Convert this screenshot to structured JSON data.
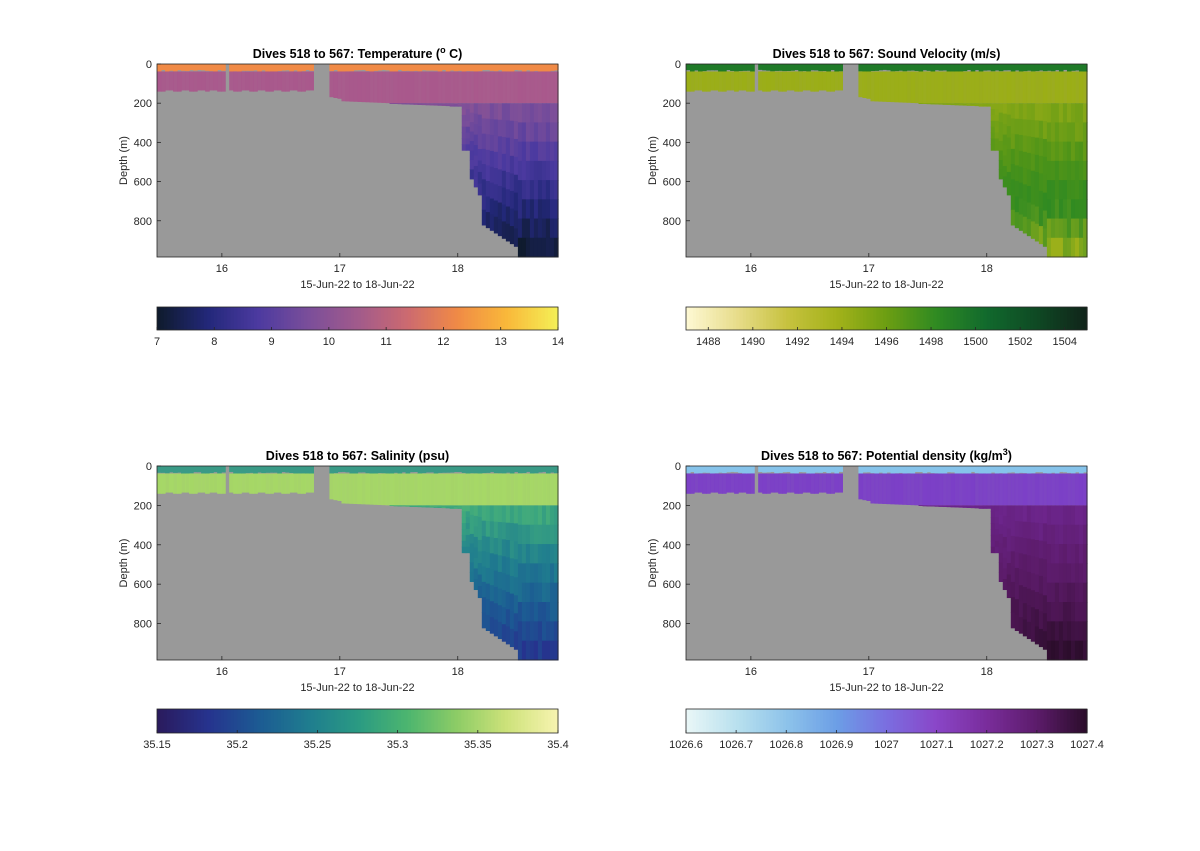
{
  "chart_data": [
    {
      "type": "heatmap",
      "title": "Dives 518 to 567: Temperature (",
      "title_sup": "o",
      "title_end": " C)",
      "xlabel": "15-Jun-22 to 18-Jun-22",
      "ylabel": "Depth (m)",
      "x_ticks": [
        "16",
        "17",
        "18"
      ],
      "y_ticks": [
        "0",
        "200",
        "400",
        "600",
        "800"
      ],
      "xlim": [
        15.45,
        18.85
      ],
      "ylim": [
        0,
        985
      ],
      "colorbar": {
        "ticks": [
          "7",
          "8",
          "9",
          "10",
          "11",
          "12",
          "13",
          "14"
        ],
        "tick_values": [
          7,
          8,
          9,
          10,
          11,
          12,
          13,
          14
        ],
        "range": [
          7,
          14
        ],
        "colormap": [
          "#0f1b2e",
          "#23287a",
          "#4c3aa0",
          "#7a4e9a",
          "#a15a8c",
          "#cc6a70",
          "#f08a46",
          "#f9b83a",
          "#f4ee55"
        ]
      },
      "profile": {
        "surface_color": "#f08a46",
        "mid_color": "#a9588c",
        "deep_colors": [
          "#a15a8c",
          "#7a4e9a",
          "#4c3aa0",
          "#23287a",
          "#0f1b2e"
        ]
      }
    },
    {
      "type": "heatmap",
      "title": "Dives 518 to 567: Sound Velocity (m/s)",
      "xlabel": "15-Jun-22 to 18-Jun-22",
      "ylabel": "Depth (m)",
      "x_ticks": [
        "16",
        "17",
        "18"
      ],
      "y_ticks": [
        "0",
        "200",
        "400",
        "600",
        "800"
      ],
      "xlim": [
        15.45,
        18.85
      ],
      "ylim": [
        0,
        985
      ],
      "colorbar": {
        "ticks": [
          "1488",
          "1490",
          "1492",
          "1494",
          "1496",
          "1498",
          "1500",
          "1502",
          "1504"
        ],
        "tick_values": [
          1488,
          1490,
          1492,
          1494,
          1496,
          1498,
          1500,
          1502,
          1504
        ],
        "range": [
          1487,
          1505
        ],
        "colormap": [
          "#fdf8d2",
          "#e7dc8a",
          "#c7c23f",
          "#a3b21a",
          "#6c9e12",
          "#2f8a22",
          "#116a2d",
          "#0f4a24",
          "#10251a"
        ]
      },
      "profile": {
        "surface_color": "#1f7a28",
        "mid_color": "#9bae16",
        "deep_colors": [
          "#a3b21a",
          "#7ea416",
          "#4f9418",
          "#2f8a22",
          "#9bb01a"
        ]
      }
    },
    {
      "type": "heatmap",
      "title": "Dives 518 to 567: Salinity (psu)",
      "xlabel": "15-Jun-22 to 18-Jun-22",
      "ylabel": "Depth (m)",
      "x_ticks": [
        "16",
        "17",
        "18"
      ],
      "y_ticks": [
        "0",
        "200",
        "400",
        "600",
        "800"
      ],
      "xlim": [
        15.45,
        18.85
      ],
      "ylim": [
        0,
        985
      ],
      "colorbar": {
        "ticks": [
          "35.15",
          "35.2",
          "35.25",
          "35.3",
          "35.35",
          "35.4"
        ],
        "tick_values": [
          35.15,
          35.2,
          35.25,
          35.3,
          35.35,
          35.4
        ],
        "range": [
          35.15,
          35.4
        ],
        "colormap": [
          "#2a1b5e",
          "#26338e",
          "#1c5a93",
          "#1f7c8f",
          "#2a9a83",
          "#4cb56f",
          "#8dcc66",
          "#cde27a",
          "#f6f3ae"
        ]
      },
      "profile": {
        "surface_color": "#3a9a86",
        "mid_color": "#a6d866",
        "deep_colors": [
          "#6cc66a",
          "#3aa57f",
          "#1f7c8f",
          "#1c5a93",
          "#26338e"
        ]
      }
    },
    {
      "type": "heatmap",
      "title": "Dives 518 to 567: Potential density (kg/m",
      "title_sup": "3",
      "title_end": ")",
      "xlabel": "15-Jun-22 to 18-Jun-22",
      "ylabel": "Depth (m)",
      "x_ticks": [
        "16",
        "17",
        "18"
      ],
      "y_ticks": [
        "0",
        "200",
        "400",
        "600",
        "800"
      ],
      "xlim": [
        15.45,
        18.85
      ],
      "ylim": [
        0,
        985
      ],
      "colorbar": {
        "ticks": [
          "1026.6",
          "1026.7",
          "1026.8",
          "1026.9",
          "1027",
          "1027.1",
          "1027.2",
          "1027.3",
          "1027.4"
        ],
        "tick_values": [
          1026.6,
          1026.7,
          1026.8,
          1026.9,
          1027,
          1027.1,
          1027.2,
          1027.3,
          1027.4
        ],
        "range": [
          1026.6,
          1027.4
        ],
        "colormap": [
          "#e8f6f7",
          "#b8e0ee",
          "#8dc3ea",
          "#6c9ee6",
          "#7a6ee0",
          "#8a46c8",
          "#7a2d9c",
          "#5d1c6c",
          "#2c0d2c"
        ]
      },
      "profile": {
        "surface_color": "#86c3ea",
        "mid_color": "#7b3fc7",
        "deep_colors": [
          "#7a2d9c",
          "#6a2488",
          "#5d1c6c",
          "#4a1550",
          "#2c0d2c"
        ]
      }
    }
  ],
  "style": {
    "missing_color": "#999999",
    "axis_color": "#262626"
  }
}
